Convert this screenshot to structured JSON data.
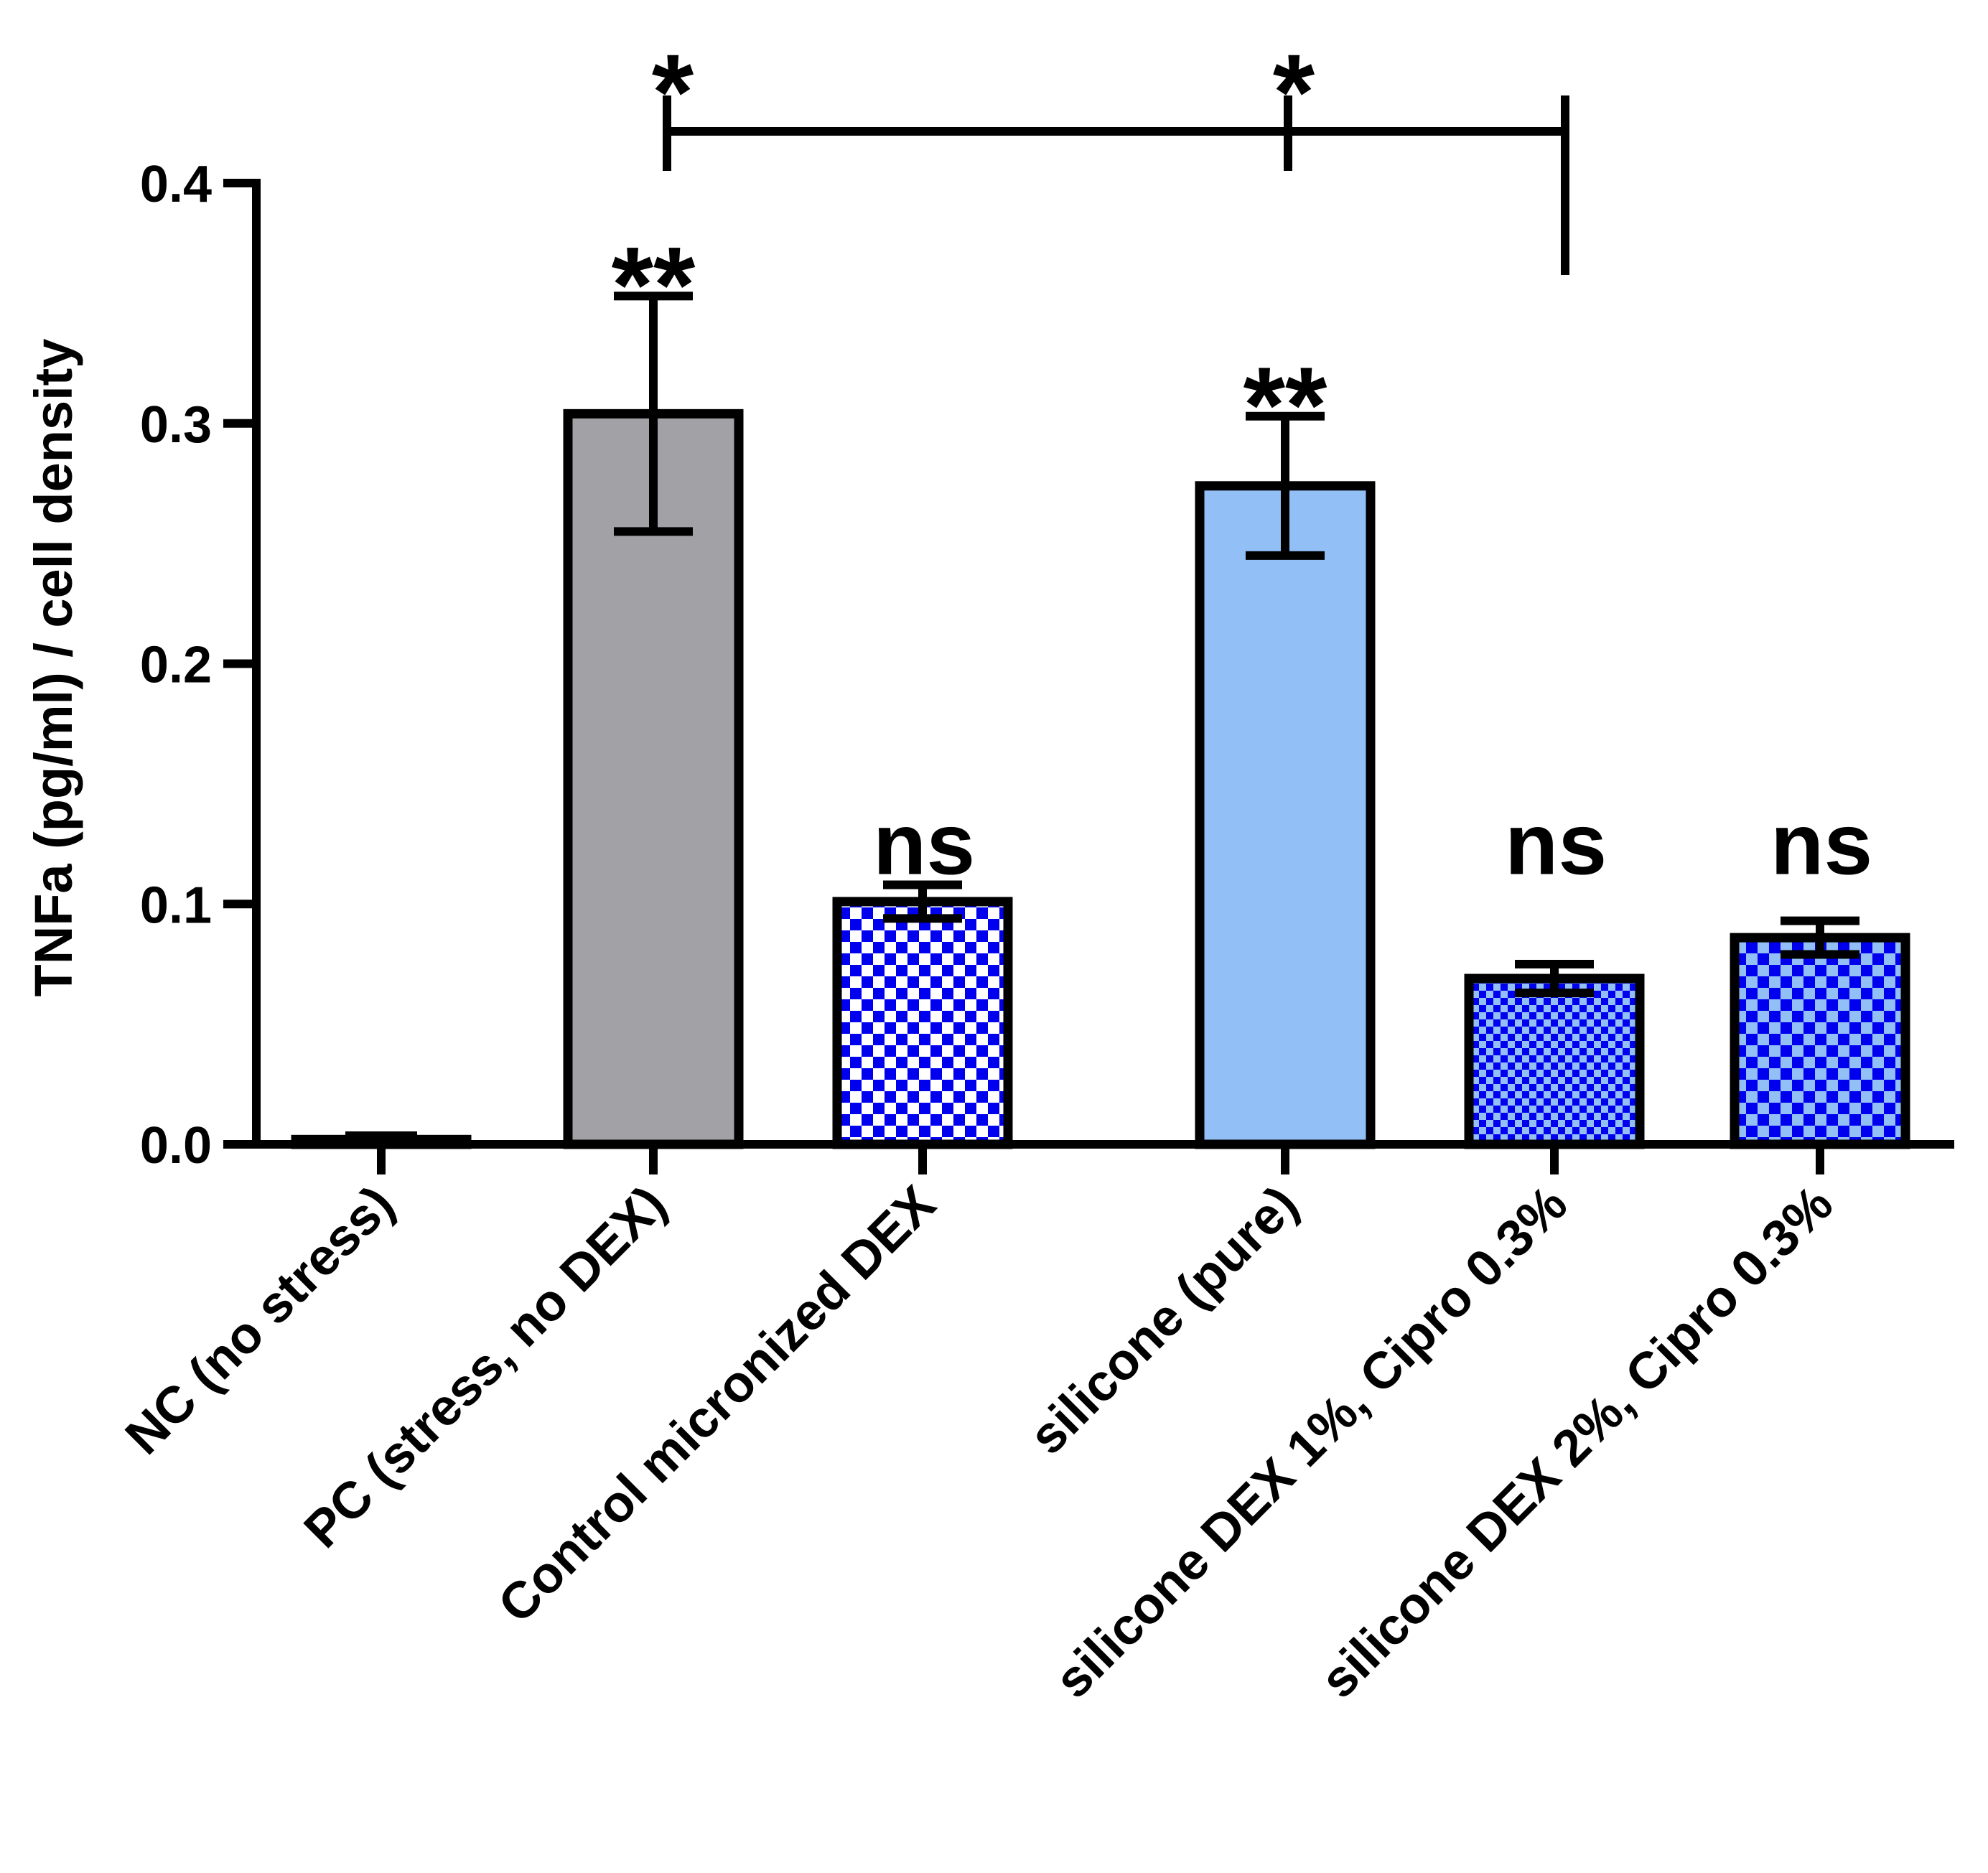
{
  "chart_data": {
    "type": "bar",
    "title": "",
    "xlabel": "",
    "ylabel": "TNFa (pg/ml) / cell density",
    "ylim": [
      0,
      0.4
    ],
    "yticks": [
      0.0,
      0.1,
      0.2,
      0.3,
      0.4
    ],
    "ytick_labels": [
      "0.0",
      "0.1",
      "0.2",
      "0.3",
      "0.4"
    ],
    "categories": [
      "NC (no stress)",
      "PC (stress, no DEX)",
      "Control micronized DEX",
      "silicone (pure)",
      "silicone DEX 1%, Cipro 0.3%",
      "silicone DEX 2%, Cipro 0.3%"
    ],
    "values": [
      0.002,
      0.304,
      0.101,
      0.274,
      0.069,
      0.086
    ],
    "errors": [
      0.001,
      0.049,
      0.007,
      0.029,
      0.006,
      0.007
    ],
    "fills": [
      "gray",
      "gray",
      "checker-dark",
      "light-blue",
      "checker-fine",
      "checker-light"
    ],
    "significance": [
      "",
      "**",
      "ns",
      "**",
      "ns",
      "ns"
    ],
    "comparison": {
      "label_left": "*",
      "label_right": "*",
      "from_category": 1,
      "mid_category": 3,
      "to_category": 4
    },
    "colors": {
      "gray": "#a2a1a6",
      "light_blue": "#92bff6",
      "blue": "#0000ee",
      "dark": "#000000"
    }
  }
}
